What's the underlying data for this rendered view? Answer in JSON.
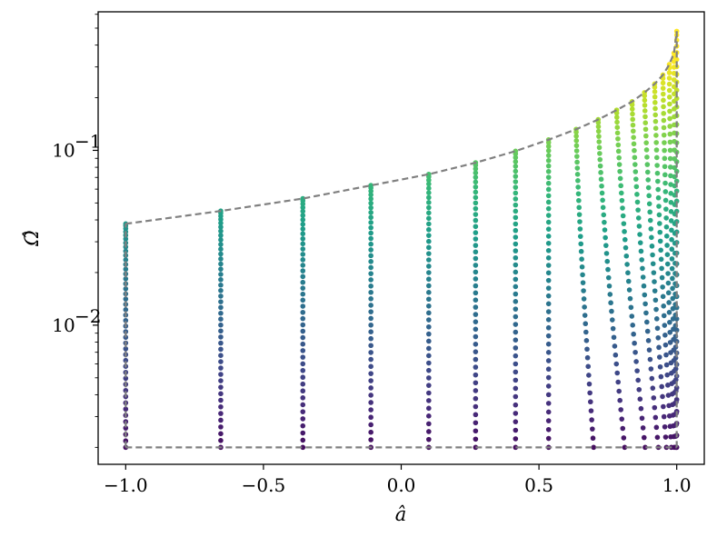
{
  "chart_data": {
    "type": "scatter",
    "title": "",
    "xlabel": "â",
    "ylabel": "Ω̂",
    "xlim": [
      -1.1,
      1.1
    ],
    "ylim": [
      0.0016,
      0.62
    ],
    "yscale": "log",
    "grid": false,
    "colormap": "viridis",
    "x_ticks": [
      {
        "value": -1.0,
        "label": "−1.0"
      },
      {
        "value": -0.5,
        "label": "−0.5"
      },
      {
        "value": 0.0,
        "label": "0.0"
      },
      {
        "value": 0.5,
        "label": "0.5"
      },
      {
        "value": 1.0,
        "label": "1.0"
      }
    ],
    "y_ticks": [
      {
        "value": 0.1,
        "label": "10",
        "exp": "−1"
      },
      {
        "value": 0.01,
        "label": "10",
        "exp": "−2"
      }
    ],
    "spin_columns": [
      -1.0,
      -0.655,
      -0.357,
      -0.11,
      0.1,
      0.27,
      0.415,
      0.535,
      0.635,
      0.715,
      0.782,
      0.838,
      0.883,
      0.92,
      0.95,
      0.973,
      0.99,
      1.0
    ],
    "omega_min": 0.002,
    "boundary_upper": {
      "style": "dashed",
      "color": "#808080",
      "x": [
        -1.0,
        -0.655,
        -0.357,
        -0.11,
        0.1,
        0.27,
        0.415,
        0.535,
        0.635,
        0.715,
        0.782,
        0.838,
        0.883,
        0.92,
        0.95,
        0.973,
        0.99,
        1.0
      ],
      "y": [
        0.038,
        0.045,
        0.053,
        0.063,
        0.073,
        0.085,
        0.099,
        0.115,
        0.132,
        0.15,
        0.17,
        0.19,
        0.214,
        0.24,
        0.27,
        0.31,
        0.36,
        0.48
      ]
    },
    "boundary_lower": {
      "style": "dashed",
      "color": "#808080",
      "x": [
        -1.0,
        1.0
      ],
      "y": [
        0.002,
        0.002
      ]
    },
    "boundary_left": {
      "style": "dashed",
      "color": "#808080",
      "x": [
        -1.0,
        -1.0
      ],
      "y": [
        0.002,
        0.038
      ]
    },
    "boundary_right": {
      "style": "dashed",
      "color": "#808080",
      "x": [
        1.0,
        1.0
      ],
      "y": [
        0.002,
        0.48
      ]
    }
  }
}
